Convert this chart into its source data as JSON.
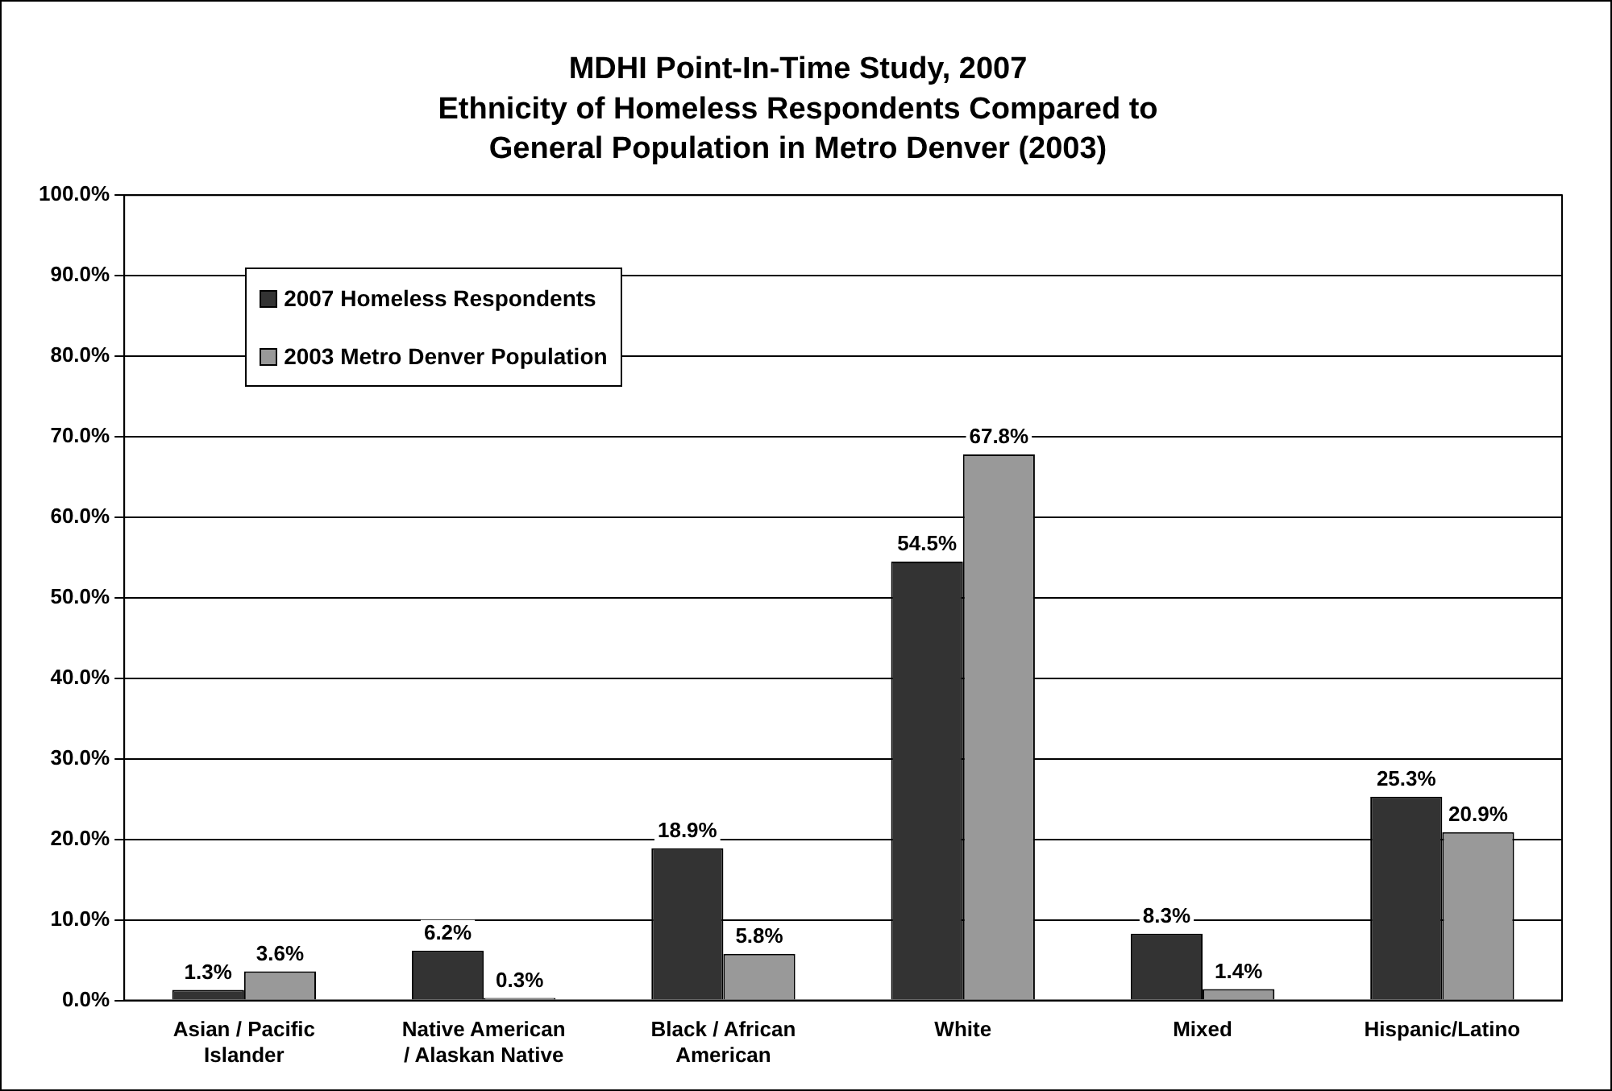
{
  "chart_data": {
    "type": "bar",
    "title": "MDHI Point-In-Time Study, 2007\nEthnicity of Homeless Respondents Compared to\nGeneral Population in Metro Denver (2003)",
    "categories": [
      "Asian / Pacific Islander",
      "Native American / Alaskan Native",
      "Black / African American",
      "White",
      "Mixed",
      "Hispanic/Latino"
    ],
    "series": [
      {
        "name": "2007 Homeless Respondents",
        "color": "#333333",
        "values": [
          1.3,
          6.2,
          18.9,
          54.5,
          8.3,
          25.3
        ],
        "value_labels": [
          "1.3%",
          "6.2%",
          "18.9%",
          "54.5%",
          "8.3%",
          "25.3%"
        ]
      },
      {
        "name": "2003 Metro Denver Population",
        "color": "#999999",
        "values": [
          3.6,
          0.3,
          5.8,
          67.8,
          1.4,
          20.9
        ],
        "value_labels": [
          "3.6%",
          "0.3%",
          "5.8%",
          "67.8%",
          "1.4%",
          "20.9%"
        ]
      }
    ],
    "ylim": [
      0,
      100
    ],
    "yticks": [
      {
        "value": 0,
        "label": "0.0%"
      },
      {
        "value": 10,
        "label": "10.0%"
      },
      {
        "value": 20,
        "label": "20.0%"
      },
      {
        "value": 30,
        "label": "30.0%"
      },
      {
        "value": 40,
        "label": "40.0%"
      },
      {
        "value": 50,
        "label": "50.0%"
      },
      {
        "value": 60,
        "label": "60.0%"
      },
      {
        "value": 70,
        "label": "70.0%"
      },
      {
        "value": 80,
        "label": "80.0%"
      },
      {
        "value": 90,
        "label": "90.0%"
      },
      {
        "value": 100,
        "label": "100.0%"
      }
    ],
    "grid": "y",
    "legend": "top left"
  }
}
